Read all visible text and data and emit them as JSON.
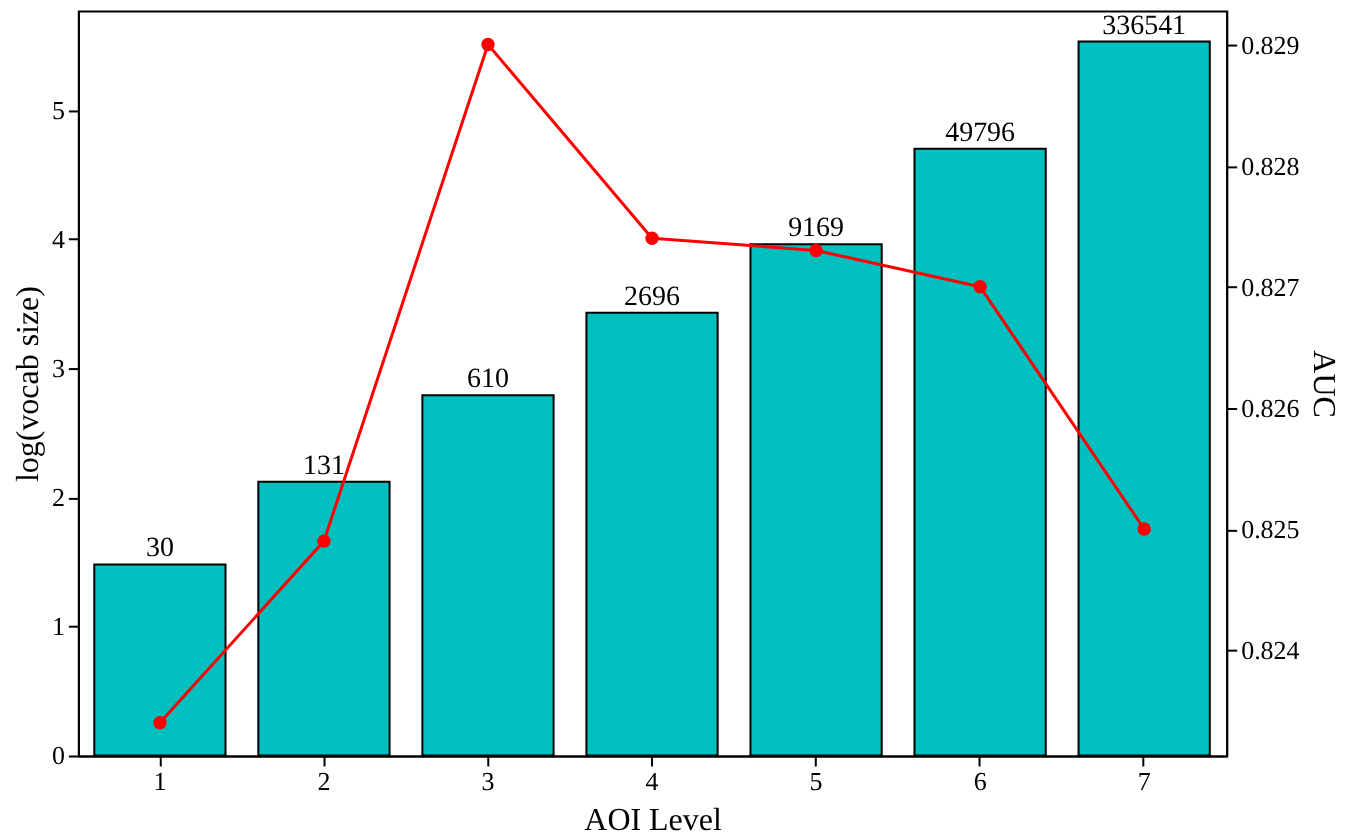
{
  "chart_data": {
    "type": "bar",
    "xlabel": "AOI Level",
    "ylabel": "log(vocab size)",
    "y2label": "AUC",
    "categories": [
      "1",
      "2",
      "3",
      "4",
      "5",
      "6",
      "7"
    ],
    "series": [
      {
        "color": "#00bfbf",
        "values": [
          1.48,
          2.12,
          2.79,
          3.43,
          3.96,
          4.7,
          5.53
        ]
      },
      {
        "type": "line",
        "axis": "y2",
        "color": "#ff0000",
        "marker": "circle",
        "values": [
          0.8234,
          0.8249,
          0.829,
          0.8274,
          0.8273,
          0.827,
          0.825
        ]
      }
    ],
    "annotations": [
      {
        "text": "30",
        "x": "1",
        "y": 1.48
      },
      {
        "text": "131",
        "x": "2",
        "y": 2.12
      },
      {
        "text": "610",
        "x": "3",
        "y": 2.79
      },
      {
        "text": "2696",
        "x": "4",
        "y": 3.43
      },
      {
        "text": "9169",
        "x": "5",
        "y": 3.96
      },
      {
        "text": "49796",
        "x": "6",
        "y": 4.7
      },
      {
        "text": "336541",
        "x": "7",
        "y": 5.53
      }
    ],
    "ylim": [
      0,
      5.77
    ],
    "yticks": [
      0,
      1,
      2,
      3,
      4,
      5
    ],
    "y2lim": [
      0.82313,
      0.82928
    ],
    "y2ticks": [
      0.824,
      0.825,
      0.826,
      0.827,
      0.828,
      0.829
    ],
    "grid": false,
    "legend": false
  }
}
